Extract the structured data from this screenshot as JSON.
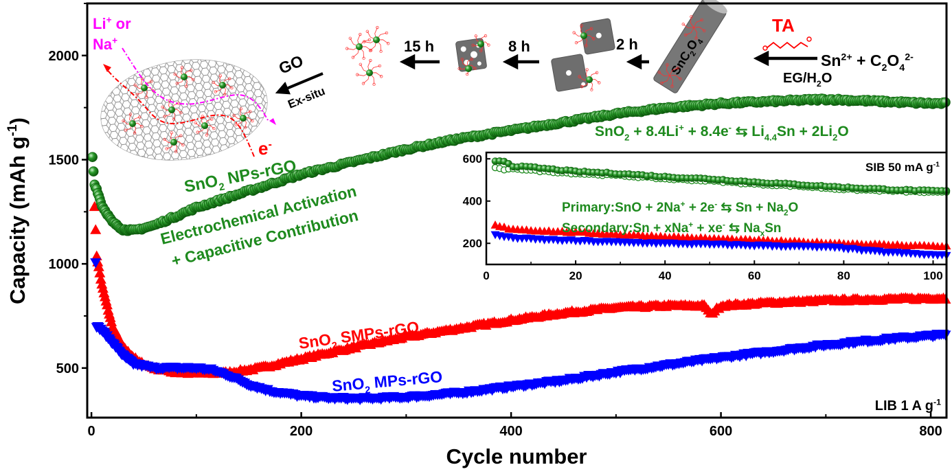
{
  "chart_data": [
    {
      "type": "scatter",
      "xlabel": "Cycle number",
      "ylabel": [
        {
          "t": "Capacity (mAh g"
        },
        {
          "t": "-1",
          "sup": true
        },
        {
          "t": ")"
        }
      ],
      "xlim": [
        -4,
        815
      ],
      "ylim": [
        262,
        2250
      ],
      "xticks": [
        "0",
        "200",
        "400",
        "600",
        "800"
      ],
      "xtick_values": [
        0,
        200,
        400,
        600,
        800
      ],
      "yticks": [
        "500",
        "1000",
        "1500",
        "2000"
      ],
      "ytick_values": [
        500,
        1000,
        1500,
        2000
      ],
      "grid": false,
      "corner_label": [
        {
          "t": "LIB 1 A g"
        },
        {
          "t": "-1",
          "sup": true
        }
      ],
      "series": [
        {
          "name": [
            {
              "t": "SnO"
            },
            {
              "t": "2",
              "sub": true
            },
            {
              "t": " NPs-rGO"
            }
          ],
          "marker": "circle",
          "color": "#1e8a1e",
          "x": [
            1,
            3,
            5,
            10,
            20,
            30,
            40,
            60,
            100,
            150,
            200,
            250,
            300,
            350,
            400,
            450,
            500,
            550,
            600,
            650,
            700,
            750,
            800,
            815
          ],
          "y": [
            1510,
            1380,
            1360,
            1280,
            1200,
            1165,
            1160,
            1185,
            1270,
            1350,
            1430,
            1490,
            1550,
            1600,
            1640,
            1680,
            1720,
            1750,
            1770,
            1780,
            1790,
            1780,
            1770,
            1770
          ]
        },
        {
          "name": [
            {
              "t": "SnO"
            },
            {
              "t": "2",
              "sub": true
            },
            {
              "t": " SMPs-rGO"
            }
          ],
          "marker": "triangle-up",
          "color": "#ff0000",
          "x": [
            3,
            5,
            10,
            20,
            30,
            45,
            60,
            80,
            100,
            130,
            160,
            200,
            250,
            300,
            350,
            400,
            450,
            500,
            550,
            585,
            590,
            600,
            650,
            700,
            750,
            800,
            815
          ],
          "y": [
            1280,
            1040,
            900,
            700,
            600,
            530,
            500,
            480,
            475,
            478,
            500,
            545,
            600,
            650,
            690,
            730,
            765,
            790,
            800,
            800,
            760,
            800,
            815,
            825,
            830,
            835,
            835
          ]
        },
        {
          "name": [
            {
              "t": "SnO"
            },
            {
              "t": "2",
              "sub": true
            },
            {
              "t": " MPs-rGO"
            }
          ],
          "marker": "triangle-down",
          "color": "#0000ff",
          "x": [
            4,
            5,
            10,
            20,
            30,
            40,
            60,
            80,
            100,
            115,
            130,
            150,
            170,
            200,
            230,
            260,
            300,
            350,
            400,
            450,
            500,
            550,
            600,
            650,
            700,
            750,
            800,
            815
          ],
          "y": [
            1010,
            700,
            680,
            620,
            560,
            520,
            500,
            500,
            500,
            490,
            465,
            420,
            390,
            365,
            355,
            353,
            360,
            380,
            410,
            440,
            480,
            515,
            550,
            580,
            610,
            635,
            655,
            660
          ]
        }
      ],
      "annotations": {
        "np_activation": [
          "Electrochemical Activation",
          "+ Capacitive Contribution"
        ],
        "lib_reaction": [
          {
            "t": "SnO"
          },
          {
            "t": "2",
            "sub": true
          },
          {
            "t": " + 8.4Li"
          },
          {
            "t": "+",
            "sup": true
          },
          {
            "t": " + 8.4e"
          },
          {
            "t": "-",
            "sup": true
          },
          {
            "t": " ⇆ Li"
          },
          {
            "t": "4.4",
            "sub": true
          },
          {
            "t": "Sn + 2Li"
          },
          {
            "t": "2",
            "sub": true
          },
          {
            "t": "O"
          }
        ]
      }
    },
    {
      "type": "scatter",
      "inset": true,
      "xlim": [
        0,
        103
      ],
      "ylim": [
        100,
        630
      ],
      "xticks": [
        "0",
        "20",
        "40",
        "60",
        "80",
        "100"
      ],
      "xtick_values": [
        0,
        20,
        40,
        60,
        80,
        100
      ],
      "yticks": [
        "200",
        "400",
        "600"
      ],
      "ytick_values": [
        200,
        400,
        600
      ],
      "corner_label": [
        {
          "t": "SIB 50 mA g"
        },
        {
          "t": "-1",
          "sup": true
        }
      ],
      "series": [
        {
          "marker": "circle-open",
          "color": "#1e8a1e",
          "x": [
            2,
            4,
            6,
            10,
            20,
            30,
            40,
            50,
            60,
            70,
            80,
            90,
            100,
            103
          ],
          "y": [
            560,
            545,
            555,
            545,
            530,
            520,
            505,
            495,
            480,
            470,
            455,
            448,
            440,
            440
          ]
        },
        {
          "marker": "circle",
          "color": "#1e8a1e",
          "x": [
            2,
            4,
            6,
            10,
            20,
            30,
            40,
            50,
            60,
            70,
            80,
            90,
            100,
            103
          ],
          "y": [
            590,
            590,
            565,
            560,
            540,
            530,
            515,
            505,
            490,
            478,
            465,
            455,
            448,
            448
          ]
        },
        {
          "marker": "triangle-up",
          "color": "#ff0000",
          "x": [
            2,
            5,
            10,
            20,
            30,
            40,
            50,
            60,
            70,
            80,
            90,
            100,
            103
          ],
          "y": [
            285,
            270,
            262,
            252,
            242,
            232,
            223,
            215,
            207,
            200,
            193,
            188,
            186
          ]
        },
        {
          "marker": "triangle-down",
          "color": "#0000ff",
          "x": [
            2,
            5,
            10,
            20,
            30,
            40,
            50,
            60,
            70,
            80,
            85,
            90,
            100,
            103
          ],
          "y": [
            240,
            228,
            220,
            212,
            205,
            200,
            195,
            190,
            185,
            178,
            165,
            158,
            145,
            142
          ]
        }
      ],
      "annotations": {
        "primary": [
          {
            "t": "Primary:SnO + 2Na"
          },
          {
            "t": "+",
            "sup": true
          },
          {
            "t": " + 2e"
          },
          {
            "t": "-",
            "sup": true
          },
          {
            "t": " ⇆ Sn + Na"
          },
          {
            "t": "2",
            "sub": true
          },
          {
            "t": "O"
          }
        ],
        "secondary": [
          {
            "t": "Secondary:Sn + xNa"
          },
          {
            "t": "+",
            "sup": true
          },
          {
            "t": " + xe"
          },
          {
            "t": "-",
            "sup": true
          },
          {
            "t": " ⇆ Na"
          },
          {
            "t": "x",
            "sub": true
          },
          {
            "t": "Sn"
          }
        ]
      }
    }
  ],
  "schematic": {
    "ion_label_1": [
      {
        "t": "Li"
      },
      {
        "t": "+",
        "sup": true
      },
      {
        "t": " or"
      }
    ],
    "ion_label_2": [
      {
        "t": "Na"
      },
      {
        "t": "+",
        "sup": true
      }
    ],
    "electron_label": [
      {
        "t": "e"
      },
      {
        "t": "-",
        "sup": true
      }
    ],
    "go_label": "GO",
    "exsitu_label": "Ex-situ",
    "step_15h": "15 h",
    "step_8h": "8 h",
    "step_2h": "2 h",
    "ta_label": "TA",
    "solvent_label": [
      {
        "t": "EG/H"
      },
      {
        "t": "2",
        "sub": true
      },
      {
        "t": "O"
      }
    ],
    "precursor_label": [
      {
        "t": "Sn"
      },
      {
        "t": "2+",
        "sup": true
      },
      {
        "t": " + C"
      },
      {
        "t": "2",
        "sub": true
      },
      {
        "t": "O"
      },
      {
        "t": "4",
        "sub": true
      },
      {
        "t": "2-",
        "sup": true
      }
    ],
    "rod_label": [
      {
        "t": "SnC"
      },
      {
        "t": "2",
        "sub": true
      },
      {
        "t": "O"
      },
      {
        "t": "4",
        "sub": true
      }
    ],
    "colors": {
      "ion": "#ff00ff",
      "electron": "#ff0000",
      "particle": "#1e8a1e",
      "ligand": "#ff3030",
      "graphene": "#808080"
    }
  }
}
